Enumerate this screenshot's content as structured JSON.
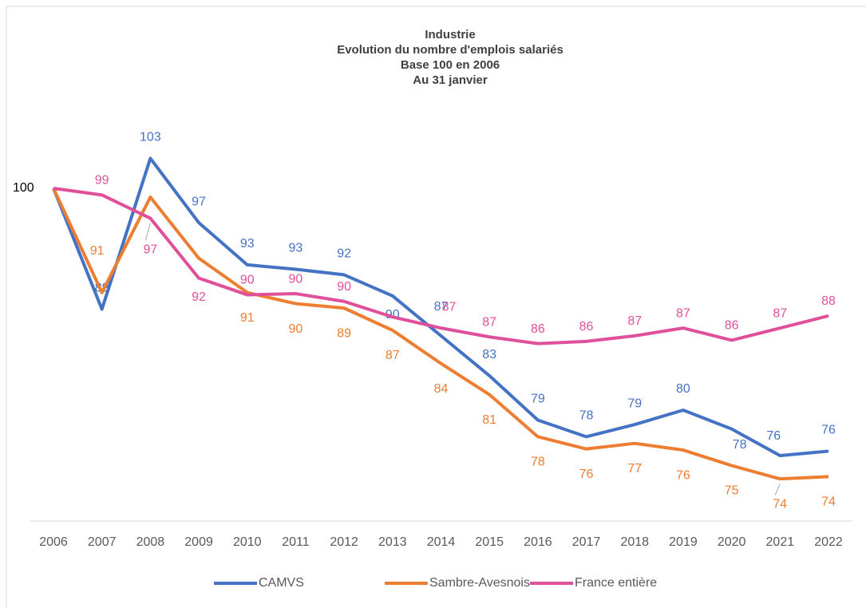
{
  "chart_data": {
    "type": "line",
    "title": [
      "Industrie",
      "Evolution du nombre d'emplois salariés",
      "Base 100 en 2006",
      "Au 31 janvier"
    ],
    "categories": [
      "2006",
      "2007",
      "2008",
      "2009",
      "2010",
      "2011",
      "2012",
      "2013",
      "2014",
      "2015",
      "2016",
      "2017",
      "2018",
      "2019",
      "2020",
      "2021",
      "2022"
    ],
    "ylim": [
      70,
      110
    ],
    "legend": "bottom",
    "series": [
      {
        "name": "CAMVS",
        "color": "#4472c4",
        "values": [
          100,
          89.1,
          102.7,
          96.9,
          93.1,
          92.7,
          92.2,
          90.3,
          86.7,
          83.1,
          79.1,
          77.6,
          78.7,
          80.0,
          78.3,
          75.9,
          76.3
        ],
        "value_labels": [
          "100",
          "89",
          "103",
          "97",
          "93",
          "93",
          "92",
          "90",
          "87",
          "83",
          "79",
          "78",
          "79",
          "80",
          "78",
          "76",
          "76"
        ]
      },
      {
        "name": "Sambre-Avesnois",
        "color": "#ed7d31",
        "values": [
          100,
          90.6,
          99.2,
          93.7,
          90.6,
          89.6,
          89.2,
          87.2,
          84.2,
          81.4,
          77.6,
          76.5,
          77.0,
          76.4,
          75.0,
          73.8,
          74.0
        ],
        "value_labels": [
          null,
          "91",
          null,
          null,
          "91",
          "90",
          "89",
          "87",
          "84",
          "81",
          "78",
          "76",
          "77",
          "76",
          "75",
          "74",
          "74"
        ]
      },
      {
        "name": "France entière",
        "color": "#e0509a",
        "values": [
          100,
          99.4,
          97.3,
          91.9,
          90.4,
          90.5,
          89.8,
          88.4,
          87.4,
          86.6,
          86.0,
          86.2,
          86.7,
          87.4,
          86.3,
          87.4,
          88.5
        ],
        "value_labels": [
          null,
          "99",
          "97",
          "92",
          "90",
          "90",
          "90",
          null,
          "87",
          "87",
          "86",
          "86",
          "87",
          "87",
          "86",
          "87",
          "88"
        ]
      }
    ]
  }
}
